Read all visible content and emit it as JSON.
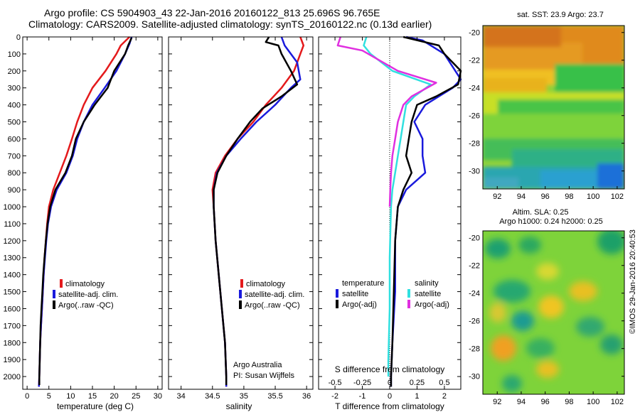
{
  "header": {
    "line1": "Argo profile: CS 5904903_43 22-Jan-2016 20160122_813 25.696S 96.765E",
    "line2": "Climatology: CARS2009. Satellite-adjusted climatology: synTS_20160122.nc (0.13d earlier)"
  },
  "credit": {
    "org": "Argo Australia",
    "pi": "PI: Susan Wijffels",
    "stamp": "©IMOS 29-Jan-2016 20:40:53"
  },
  "colors": {
    "climatology": "#e41a1c",
    "satellite": "#1a1adc",
    "argo": "#000000",
    "sal_satellite": "#30e0e0",
    "sal_argo": "#e030e0"
  },
  "chart_data": [
    {
      "type": "line",
      "name": "temperature-profile",
      "xlabel": "temperature (deg C)",
      "ylabel": "",
      "xlim": [
        -1,
        31
      ],
      "ylim": [
        2075,
        0
      ],
      "y_reversed": true,
      "xticks": [
        0,
        5,
        10,
        15,
        20,
        25,
        30
      ],
      "yticks": [
        0,
        100,
        200,
        300,
        400,
        500,
        600,
        700,
        800,
        900,
        1000,
        1100,
        1200,
        1300,
        1400,
        1500,
        1600,
        1700,
        1800,
        1900,
        2000
      ],
      "legend": [
        "climatology",
        "satellite-adj. clim.",
        "Argo(..raw -QC)"
      ],
      "series": [
        {
          "name": "climatology",
          "color": "#e41a1c",
          "points": [
            [
              23.5,
              0
            ],
            [
              21.5,
              50
            ],
            [
              20.5,
              100
            ],
            [
              18,
              200
            ],
            [
              15,
              300
            ],
            [
              13,
              400
            ],
            [
              11.5,
              500
            ],
            [
              10.3,
              600
            ],
            [
              9,
              700
            ],
            [
              7.5,
              800
            ],
            [
              6,
              900
            ],
            [
              5,
              1000
            ],
            [
              4.6,
              1100
            ],
            [
              4.3,
              1200
            ],
            [
              4,
              1300
            ],
            [
              3.8,
              1400
            ],
            [
              3.6,
              1500
            ],
            [
              3.4,
              1600
            ],
            [
              3.2,
              1700
            ],
            [
              3,
              1800
            ],
            [
              2.9,
              1900
            ],
            [
              2.8,
              2000
            ],
            [
              2.7,
              2060
            ]
          ]
        },
        {
          "name": "satellite-adj. clim.",
          "color": "#1a1adc",
          "points": [
            [
              24,
              0
            ],
            [
              23.5,
              40
            ],
            [
              22.5,
              100
            ],
            [
              20.5,
              200
            ],
            [
              17.8,
              300
            ],
            [
              15,
              400
            ],
            [
              13,
              500
            ],
            [
              11.5,
              600
            ],
            [
              10.5,
              700
            ],
            [
              9,
              800
            ],
            [
              6.8,
              900
            ],
            [
              5.5,
              1000
            ],
            [
              4.8,
              1100
            ],
            [
              4.4,
              1200
            ],
            [
              4.1,
              1300
            ],
            [
              3.8,
              1400
            ],
            [
              3.6,
              1500
            ],
            [
              3.4,
              1600
            ],
            [
              3.2,
              1700
            ],
            [
              3.0,
              1800
            ],
            [
              2.9,
              1900
            ],
            [
              2.8,
              2000
            ],
            [
              2.7,
              2060
            ]
          ]
        },
        {
          "name": "Argo(..raw -QC)",
          "color": "#000000",
          "points": [
            [
              24,
              5
            ],
            [
              23.2,
              50
            ],
            [
              22.5,
              100
            ],
            [
              20,
              200
            ],
            [
              18.5,
              300
            ],
            [
              15.5,
              400
            ],
            [
              13,
              500
            ],
            [
              11.2,
              600
            ],
            [
              10.3,
              700
            ],
            [
              8.8,
              800
            ],
            [
              6.5,
              900
            ],
            [
              5.3,
              1000
            ],
            [
              4.7,
              1100
            ],
            [
              4.3,
              1200
            ],
            [
              4,
              1300
            ],
            [
              3.7,
              1400
            ],
            [
              3.5,
              1500
            ],
            [
              3.3,
              1600
            ],
            [
              3.1,
              1700
            ],
            [
              3,
              1800
            ],
            [
              2.9,
              1900
            ],
            [
              2.8,
              2000
            ],
            [
              2.8,
              2050
            ]
          ]
        }
      ]
    },
    {
      "type": "line",
      "name": "salinity-profile",
      "xlabel": "salinity",
      "xlim": [
        33.8,
        36.1
      ],
      "ylim": [
        2075,
        0
      ],
      "y_reversed": true,
      "xticks": [
        34,
        34.5,
        35,
        35.5,
        36
      ],
      "legend": [
        "climatology",
        "satellite-adj. clim.",
        "Argo(..raw -QC)"
      ],
      "series": [
        {
          "name": "climatology",
          "color": "#e41a1c",
          "points": [
            [
              35.9,
              0
            ],
            [
              35.95,
              50
            ],
            [
              35.9,
              100
            ],
            [
              35.8,
              200
            ],
            [
              35.6,
              300
            ],
            [
              35.35,
              400
            ],
            [
              35.15,
              500
            ],
            [
              34.9,
              600
            ],
            [
              34.7,
              700
            ],
            [
              34.55,
              800
            ],
            [
              34.5,
              900
            ],
            [
              34.52,
              1000
            ],
            [
              34.55,
              1200
            ],
            [
              34.6,
              1400
            ],
            [
              34.65,
              1600
            ],
            [
              34.7,
              1800
            ],
            [
              34.72,
              2000
            ],
            [
              34.72,
              2060
            ]
          ]
        },
        {
          "name": "satellite-adj. clim.",
          "color": "#1a1adc",
          "points": [
            [
              35.6,
              0
            ],
            [
              35.65,
              50
            ],
            [
              35.85,
              150
            ],
            [
              35.9,
              250
            ],
            [
              35.75,
              300
            ],
            [
              35.5,
              400
            ],
            [
              35.2,
              500
            ],
            [
              34.95,
              600
            ],
            [
              34.72,
              700
            ],
            [
              34.57,
              800
            ],
            [
              34.52,
              900
            ],
            [
              34.52,
              1000
            ],
            [
              34.55,
              1200
            ],
            [
              34.6,
              1400
            ],
            [
              34.65,
              1600
            ],
            [
              34.7,
              1800
            ],
            [
              34.72,
              2000
            ],
            [
              34.72,
              2060
            ]
          ]
        },
        {
          "name": "Argo(..raw -QC)",
          "color": "#000000",
          "points": [
            [
              35.4,
              0
            ],
            [
              35.35,
              30
            ],
            [
              35.55,
              50
            ],
            [
              35.6,
              100
            ],
            [
              35.75,
              200
            ],
            [
              35.85,
              280
            ],
            [
              35.6,
              350
            ],
            [
              35.3,
              420
            ],
            [
              35.1,
              500
            ],
            [
              34.9,
              600
            ],
            [
              34.72,
              700
            ],
            [
              34.58,
              800
            ],
            [
              34.52,
              900
            ],
            [
              34.52,
              1000
            ],
            [
              34.55,
              1200
            ],
            [
              34.6,
              1400
            ],
            [
              34.65,
              1600
            ],
            [
              34.7,
              1800
            ],
            [
              34.72,
              2000
            ],
            [
              34.72,
              2050
            ]
          ]
        }
      ]
    },
    {
      "type": "line",
      "name": "difference-profile",
      "xlabel": "T difference from climatology",
      "xlabel_top": "S difference from climatology",
      "xlim": [
        -2.6,
        2.6
      ],
      "ylim": [
        2075,
        0
      ],
      "y_reversed": true,
      "xticks": [
        -2,
        -1,
        0,
        1,
        2
      ],
      "xticks_top": [
        -0.5,
        -0.25,
        0,
        0.25,
        0.5
      ],
      "xtick_labels_top": [
        "-0.5",
        "-0.25",
        "0",
        "0.25",
        "0.5"
      ],
      "legend_temperature": {
        "title": "temperature",
        "items": [
          "satellite",
          "Argo(-adj)"
        ]
      },
      "legend_salinity": {
        "title": "salinity",
        "items": [
          "satellite",
          "Argo(-adj)"
        ]
      },
      "series": [
        {
          "name": "temperature satellite",
          "color": "#1a1adc",
          "points": [
            [
              0.6,
              0
            ],
            [
              1.2,
              20
            ],
            [
              2.0,
              100
            ],
            [
              2.6,
              250
            ],
            [
              2.3,
              300
            ],
            [
              1.3,
              400
            ],
            [
              0.9,
              500
            ],
            [
              1.2,
              600
            ],
            [
              1.2,
              700
            ],
            [
              1.3,
              800
            ],
            [
              0.6,
              900
            ],
            [
              0.3,
              1000
            ],
            [
              0.2,
              1200
            ],
            [
              0.2,
              1500
            ],
            [
              0.1,
              1800
            ],
            [
              0.05,
              2000
            ],
            [
              0.05,
              2060
            ]
          ]
        },
        {
          "name": "temperature Argo(-adj)",
          "color": "#000000",
          "points": [
            [
              0.5,
              0
            ],
            [
              1.8,
              50
            ],
            [
              2.0,
              100
            ],
            [
              2.6,
              200
            ],
            [
              2.5,
              280
            ],
            [
              1.7,
              350
            ],
            [
              1.0,
              400
            ],
            [
              0.8,
              500
            ],
            [
              0.7,
              600
            ],
            [
              0.6,
              700
            ],
            [
              0.8,
              800
            ],
            [
              0.5,
              900
            ],
            [
              0.3,
              1000
            ],
            [
              0.2,
              1200
            ],
            [
              0.15,
              1500
            ],
            [
              0.1,
              1800
            ],
            [
              0.05,
              2000
            ],
            [
              0.05,
              2060
            ]
          ]
        },
        {
          "name": "salinity satellite",
          "color": "#30e0e0",
          "points": [
            [
              -0.85,
              0
            ],
            [
              -0.95,
              50
            ],
            [
              -0.7,
              100
            ],
            [
              0.1,
              200
            ],
            [
              1.5,
              280
            ],
            [
              0.9,
              350
            ],
            [
              0.6,
              400
            ],
            [
              0.5,
              500
            ],
            [
              0.4,
              600
            ],
            [
              0.3,
              700
            ],
            [
              0.2,
              800
            ],
            [
              0.1,
              900
            ],
            [
              0.05,
              1000
            ],
            [
              0,
              1300
            ],
            [
              0,
              1600
            ],
            [
              -0.05,
              1900
            ],
            [
              -0.05,
              2000
            ]
          ]
        },
        {
          "name": "salinity Argo(-adj)",
          "color": "#e030e0",
          "points": [
            [
              -1.8,
              0
            ],
            [
              -1.9,
              50
            ],
            [
              -1.0,
              80
            ],
            [
              0.3,
              200
            ],
            [
              1.7,
              270
            ],
            [
              0.8,
              350
            ],
            [
              0.5,
              400
            ],
            [
              0.3,
              500
            ],
            [
              0.2,
              600
            ],
            [
              0.1,
              700
            ],
            [
              0.05,
              800
            ],
            [
              0.02,
              900
            ],
            [
              0,
              1000
            ]
          ]
        }
      ]
    }
  ],
  "map_sst": {
    "title": "sat. SST: 23.9 Argo: 23.7",
    "yticks": [
      -20,
      -22,
      -24,
      -26,
      -28,
      -30
    ],
    "xticks": [
      92,
      94,
      96,
      98,
      100,
      102
    ]
  },
  "map_sla": {
    "title1": "Altim. SLA: 0.25",
    "title2": "Argo h1000: 0.24 h2000: 0.25",
    "yticks": [
      -20,
      -22,
      -24,
      -26,
      -28,
      -30
    ],
    "xticks": [
      92,
      94,
      96,
      98,
      100,
      102
    ]
  }
}
